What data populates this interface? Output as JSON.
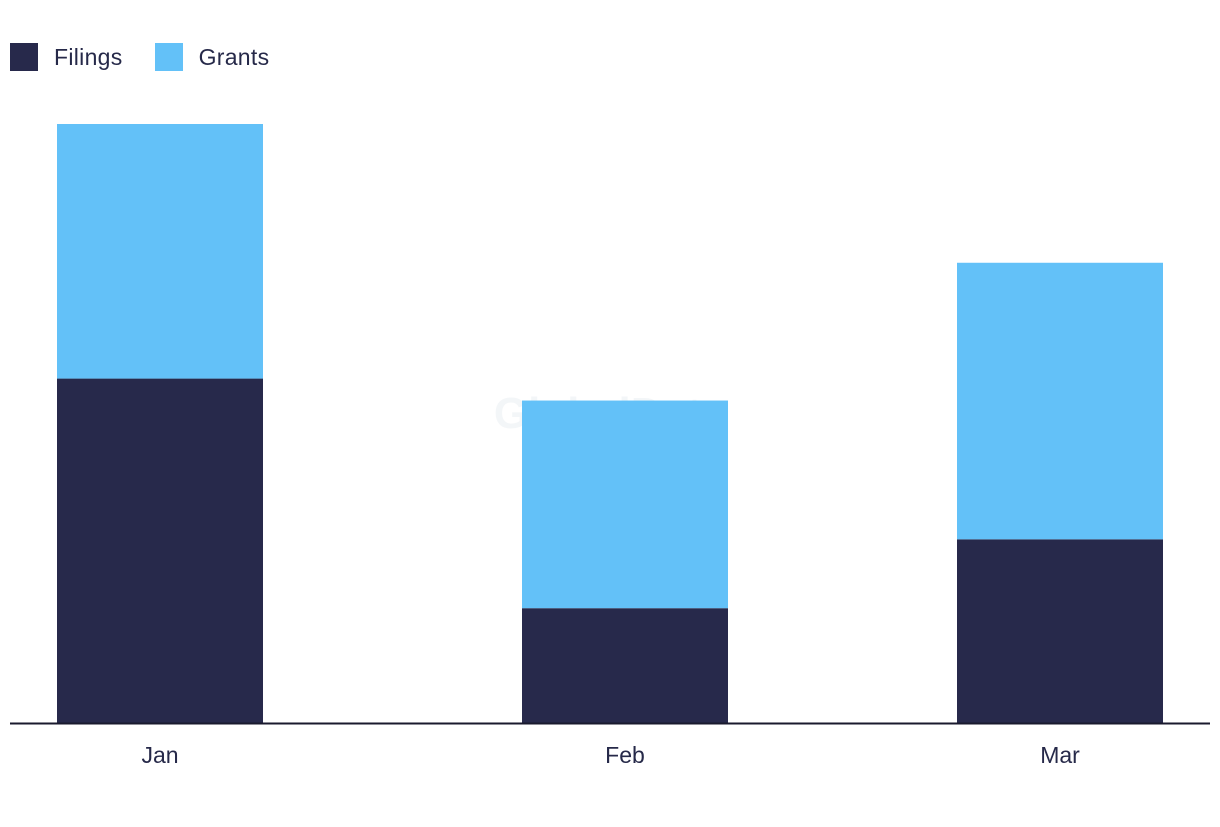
{
  "chart_data": {
    "type": "bar",
    "stacked": true,
    "categories": [
      "Jan",
      "Feb",
      "Mar"
    ],
    "series": [
      {
        "name": "Filings",
        "values": [
          345,
          115,
          184
        ],
        "color": "#27294b"
      },
      {
        "name": "Grants",
        "values": [
          255,
          208,
          277
        ],
        "color": "#63c1f8"
      }
    ],
    "ylim": [
      0,
      600
    ],
    "grid": false,
    "legend": "top-left",
    "watermark": "GlobalData"
  }
}
